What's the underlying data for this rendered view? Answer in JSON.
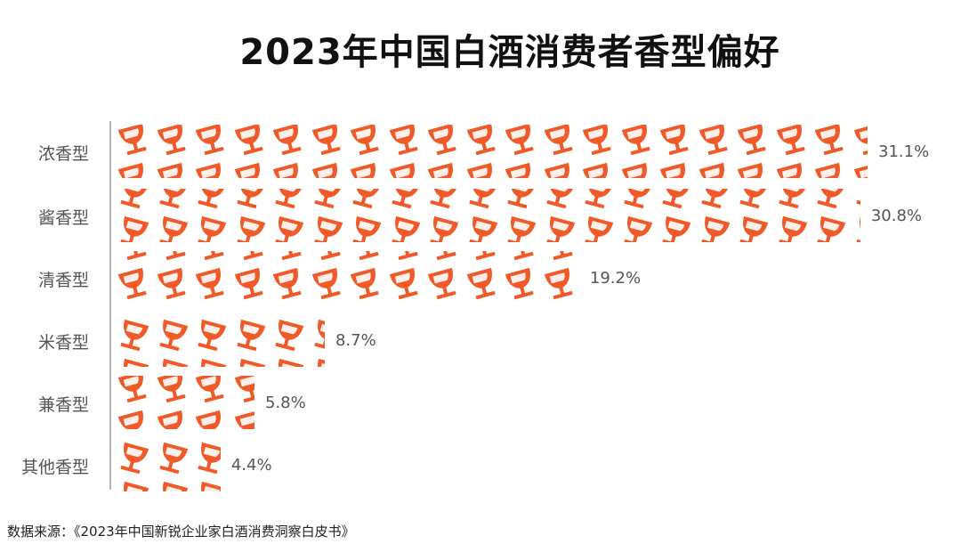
{
  "title": "2023年中国白酒消费者香型偏好",
  "source": "数据来源：《2023年中国新锐企业家白酒消费洞察白皮书》",
  "colors": {
    "icon": "#f05a28",
    "axis": "#b5b5b5",
    "label": "#555555"
  },
  "icon": "wine-glass-icon",
  "rows": [
    {
      "label": "浓香型",
      "value_label": "31.1%"
    },
    {
      "label": "酱香型",
      "value_label": "30.8%"
    },
    {
      "label": "清香型",
      "value_label": "19.2%"
    },
    {
      "label": "米香型",
      "value_label": "8.7%"
    },
    {
      "label": "兼香型",
      "value_label": "5.8%"
    },
    {
      "label": "其他香型",
      "value_label": "4.4%"
    }
  ],
  "chart_data": {
    "type": "bar",
    "orientation": "horizontal",
    "style": "pictograph (wine glass icons)",
    "title": "2023年中国白酒消费者香型偏好",
    "categories": [
      "浓香型",
      "酱香型",
      "清香型",
      "米香型",
      "兼香型",
      "其他香型"
    ],
    "values": [
      31.1,
      30.8,
      19.2,
      8.7,
      5.8,
      4.4
    ],
    "unit": "%",
    "xlabel": "",
    "ylabel": "",
    "grid": false,
    "legend": null,
    "source": "数据来源：《2023年中国新锐企业家白酒消费洞察白皮书》"
  }
}
